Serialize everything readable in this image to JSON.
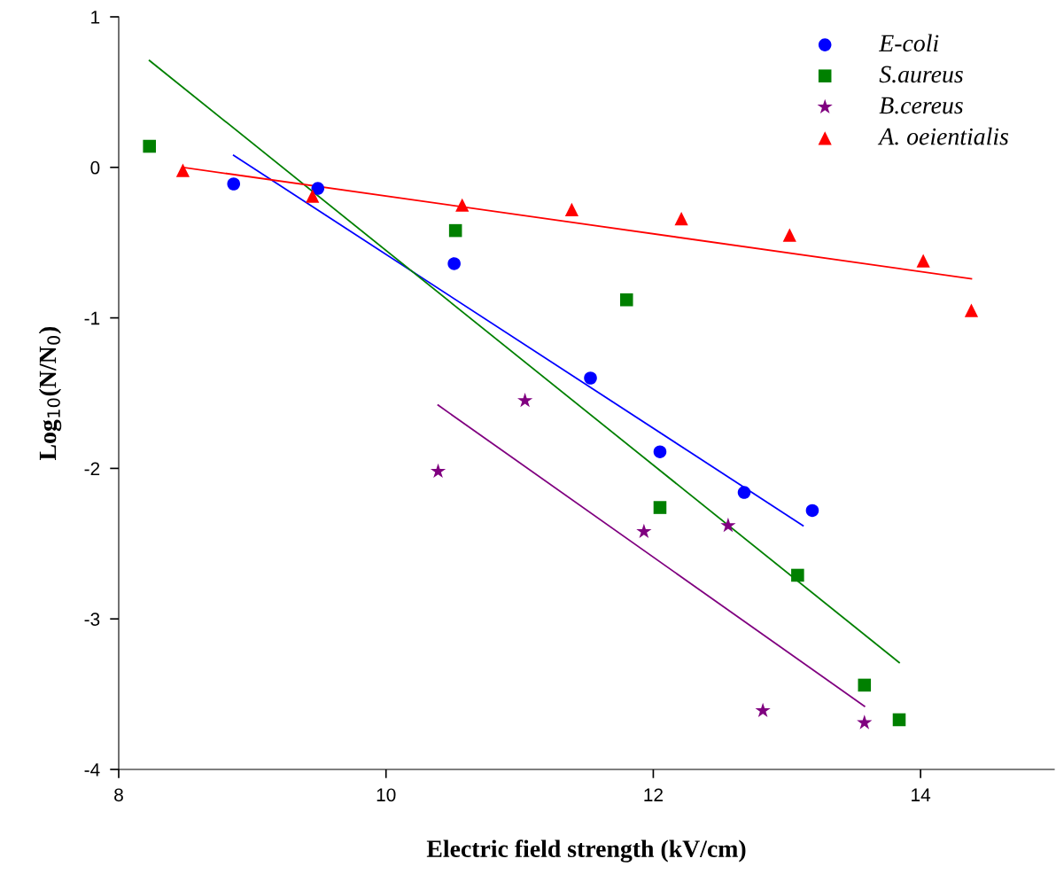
{
  "chart_data": {
    "type": "scatter",
    "xlabel": "Electric field strength (kV/cm)",
    "ylabel": "Log$_{10}$(N/N$_{0}$)",
    "xlim": [
      8,
      15
    ],
    "xticks": [
      8,
      10,
      12,
      14
    ],
    "ylim": [
      -4,
      1
    ],
    "yticks": [
      -4,
      -3,
      -2,
      -1,
      0,
      1
    ],
    "grid": false,
    "legend": "top right",
    "series": [
      {
        "name": "E-coli",
        "marker": "circle",
        "color": "#0000ff",
        "x": [
          8.86,
          9.49,
          10.51,
          11.53,
          12.05,
          12.68,
          13.19
        ],
        "values": [
          -0.11,
          -0.14,
          -0.64,
          -1.4,
          -1.89,
          -2.16,
          -2.28
        ]
      },
      {
        "name": "S.aureus",
        "marker": "square",
        "color": "#008000",
        "x": [
          8.23,
          10.52,
          11.8,
          12.05,
          13.08,
          13.58,
          13.84
        ],
        "values": [
          0.14,
          -0.42,
          -0.88,
          -2.26,
          -2.71,
          -3.44,
          -3.67
        ]
      },
      {
        "name": "B.cereus",
        "marker": "star",
        "color": "#800080",
        "x": [
          10.39,
          11.04,
          11.93,
          12.56,
          12.82,
          13.58
        ],
        "values": [
          -2.02,
          -1.55,
          -2.42,
          -2.38,
          -3.61,
          -3.69
        ]
      },
      {
        "name": "A. oeientialis",
        "marker": "triangle",
        "color": "#ff0000",
        "x": [
          8.48,
          9.45,
          10.57,
          11.39,
          12.21,
          13.02,
          14.02,
          14.38
        ],
        "values": [
          -0.02,
          -0.19,
          -0.25,
          -0.28,
          -0.34,
          -0.45,
          -0.62,
          -0.95
        ]
      },
      {
        "type": "line",
        "color": "#0000ff",
        "x": [
          8.86,
          13.12
        ],
        "values": [
          0.08,
          -2.38
        ]
      },
      {
        "type": "line",
        "color": "#008000",
        "x": [
          8.23,
          13.84
        ],
        "values": [
          0.71,
          -3.29
        ]
      },
      {
        "type": "line",
        "color": "#800080",
        "x": [
          10.39,
          13.58
        ],
        "values": [
          -1.58,
          -3.58
        ]
      },
      {
        "type": "line",
        "color": "#ff0000",
        "x": [
          8.48,
          14.38
        ],
        "values": [
          0.0,
          -0.74
        ]
      }
    ]
  }
}
